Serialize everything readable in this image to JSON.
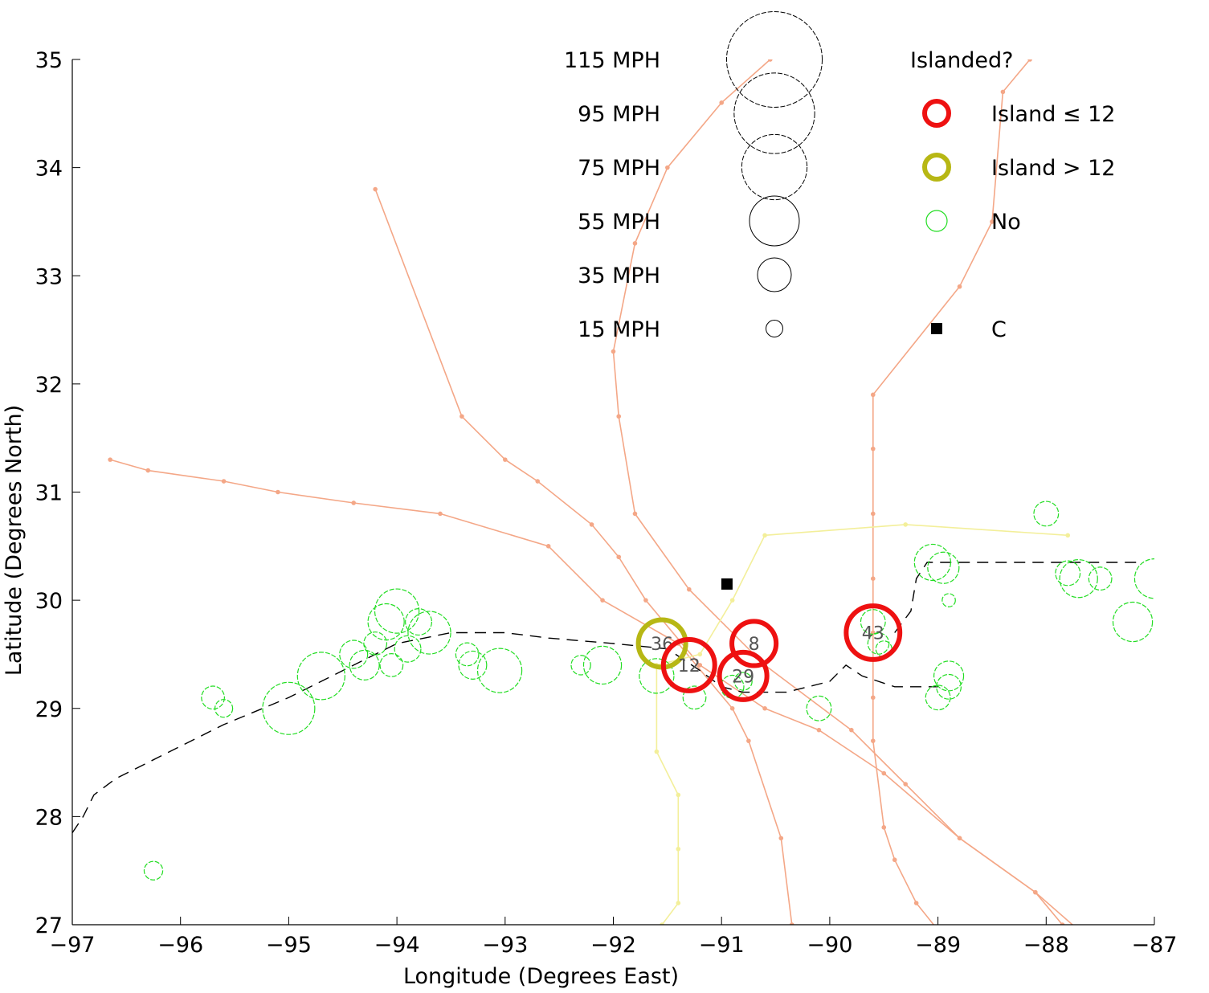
{
  "chart_data": {
    "type": "scatter",
    "xlabel": "Longitude (Degrees East)",
    "ylabel": "Latitude (Degrees North)",
    "xlim": [
      -97,
      -87
    ],
    "ylim": [
      27,
      35
    ],
    "xticks": [
      -97,
      -96,
      -95,
      -94,
      -93,
      -92,
      -91,
      -90,
      -89,
      -88,
      -87
    ],
    "yticks": [
      27,
      28,
      29,
      30,
      31,
      32,
      33,
      34,
      35
    ],
    "grid": false,
    "colors": {
      "track": "#f4a787",
      "track_yellow": "#f3ef9a",
      "coast": "#000000",
      "coast_faint": "#bbbbbb",
      "island_le12": "#ee1111",
      "island_gt12": "#b7b714",
      "no": "#22dd22",
      "legend_circle": "#000000",
      "label": "#555555"
    },
    "size_legend": [
      {
        "label": "115 MPH",
        "mph": 115
      },
      {
        "label": "95 MPH",
        "mph": 95
      },
      {
        "label": "75 MPH",
        "mph": 75
      },
      {
        "label": "55 MPH",
        "mph": 55
      },
      {
        "label": "35 MPH",
        "mph": 35
      },
      {
        "label": "15 MPH",
        "mph": 15
      }
    ],
    "category_legend": {
      "title": "Islanded?",
      "items": [
        {
          "label": "Island ≤ 12",
          "key": "island_le12"
        },
        {
          "label": "Island > 12",
          "key": "island_gt12"
        },
        {
          "label": "No",
          "key": "no"
        },
        {
          "label": "C",
          "key": "c"
        }
      ]
    },
    "c_marker": {
      "lon": -90.95,
      "lat": 30.15
    },
    "islanded_le12": [
      {
        "lon": -91.3,
        "lat": 29.4,
        "mph": 57,
        "label": "12"
      },
      {
        "lon": -90.7,
        "lat": 29.6,
        "mph": 48,
        "label": "8"
      },
      {
        "lon": -90.8,
        "lat": 29.3,
        "mph": 52,
        "label": "29"
      },
      {
        "lon": -89.6,
        "lat": 29.7,
        "mph": 60,
        "label": "43"
      }
    ],
    "islanded_gt12": [
      {
        "lon": -91.55,
        "lat": 29.6,
        "mph": 52,
        "label": "36"
      }
    ],
    "not_islanded": [
      {
        "lon": -96.25,
        "lat": 27.5,
        "mph": 17
      },
      {
        "lon": -95.7,
        "lat": 29.1,
        "mph": 22
      },
      {
        "lon": -95.6,
        "lat": 29.0,
        "mph": 16
      },
      {
        "lon": -95.0,
        "lat": 29.0,
        "mph": 58
      },
      {
        "lon": -94.7,
        "lat": 29.3,
        "mph": 52
      },
      {
        "lon": -94.4,
        "lat": 29.5,
        "mph": 28
      },
      {
        "lon": -94.3,
        "lat": 29.4,
        "mph": 30
      },
      {
        "lon": -94.2,
        "lat": 29.6,
        "mph": 22
      },
      {
        "lon": -94.1,
        "lat": 29.8,
        "mph": 38
      },
      {
        "lon": -94.0,
        "lat": 29.9,
        "mph": 48
      },
      {
        "lon": -94.05,
        "lat": 29.4,
        "mph": 22
      },
      {
        "lon": -93.9,
        "lat": 29.55,
        "mph": 26
      },
      {
        "lon": -93.8,
        "lat": 29.8,
        "mph": 26
      },
      {
        "lon": -93.7,
        "lat": 29.7,
        "mph": 46
      },
      {
        "lon": -93.35,
        "lat": 29.5,
        "mph": 22
      },
      {
        "lon": -93.3,
        "lat": 29.4,
        "mph": 28
      },
      {
        "lon": -93.05,
        "lat": 29.35,
        "mph": 48
      },
      {
        "lon": -92.3,
        "lat": 29.4,
        "mph": 18
      },
      {
        "lon": -92.1,
        "lat": 29.4,
        "mph": 40
      },
      {
        "lon": -91.6,
        "lat": 29.3,
        "mph": 36
      },
      {
        "lon": -91.25,
        "lat": 29.1,
        "mph": 22
      },
      {
        "lon": -90.9,
        "lat": 29.2,
        "mph": 22
      },
      {
        "lon": -90.8,
        "lat": 29.25,
        "mph": 16
      },
      {
        "lon": -90.1,
        "lat": 29.0,
        "mph": 24
      },
      {
        "lon": -89.6,
        "lat": 29.8,
        "mph": 24
      },
      {
        "lon": -89.55,
        "lat": 29.6,
        "mph": 20
      },
      {
        "lon": -89.5,
        "lat": 29.55,
        "mph": 14
      },
      {
        "lon": -89.0,
        "lat": 29.1,
        "mph": 24
      },
      {
        "lon": -88.9,
        "lat": 29.3,
        "mph": 30
      },
      {
        "lon": -88.9,
        "lat": 29.2,
        "mph": 24
      },
      {
        "lon": -88.9,
        "lat": 30.0,
        "mph": 11
      },
      {
        "lon": -88.95,
        "lat": 30.3,
        "mph": 32
      },
      {
        "lon": -89.05,
        "lat": 30.35,
        "mph": 38
      },
      {
        "lon": -88.0,
        "lat": 30.8,
        "mph": 24
      },
      {
        "lon": -87.8,
        "lat": 30.25,
        "mph": 24
      },
      {
        "lon": -87.7,
        "lat": 30.2,
        "mph": 40
      },
      {
        "lon": -87.5,
        "lat": 30.2,
        "mph": 22
      },
      {
        "lon": -87.2,
        "lat": 29.8,
        "mph": 42
      },
      {
        "lon": -87.0,
        "lat": 30.2,
        "mph": 42
      }
    ],
    "coast": {
      "segments": [
        [
          [
            -97.0,
            27.85
          ],
          [
            -96.9,
            28.0
          ],
          [
            -96.8,
            28.2
          ],
          [
            -96.6,
            28.35
          ],
          [
            -96.2,
            28.55
          ],
          [
            -95.6,
            28.85
          ],
          [
            -95.0,
            29.1
          ],
          [
            -94.5,
            29.35
          ],
          [
            -94.0,
            29.6
          ],
          [
            -93.5,
            29.7
          ],
          [
            -93.0,
            29.7
          ],
          [
            -92.6,
            29.65
          ],
          [
            -92.0,
            29.6
          ],
          [
            -91.5,
            29.55
          ],
          [
            -91.2,
            29.35
          ],
          [
            -91.0,
            29.2
          ],
          [
            -90.8,
            29.15
          ],
          [
            -90.4,
            29.15
          ],
          [
            -90.0,
            29.25
          ],
          [
            -89.85,
            29.4
          ],
          [
            -89.7,
            29.3
          ],
          [
            -89.4,
            29.2
          ],
          [
            -89.0,
            29.2
          ]
        ],
        [
          [
            -89.4,
            29.7
          ],
          [
            -89.25,
            29.9
          ],
          [
            -89.2,
            30.2
          ],
          [
            -89.1,
            30.35
          ],
          [
            -88.5,
            30.35
          ],
          [
            -87.9,
            30.35
          ],
          [
            -87.1,
            30.35
          ]
        ]
      ]
    },
    "tracks": [
      {
        "color": "track",
        "points": [
          [
            -96.65,
            31.3
          ],
          [
            -96.3,
            31.2
          ],
          [
            -95.6,
            31.1
          ],
          [
            -95.1,
            31.0
          ],
          [
            -94.4,
            30.9
          ],
          [
            -93.6,
            30.8
          ],
          [
            -92.6,
            30.5
          ],
          [
            -92.1,
            30.0
          ],
          [
            -91.4,
            29.6
          ],
          [
            -90.9,
            29.0
          ],
          [
            -90.75,
            28.7
          ],
          [
            -90.45,
            27.8
          ],
          [
            -90.35,
            27.0
          ]
        ]
      },
      {
        "color": "track",
        "points": [
          [
            -94.2,
            33.8
          ],
          [
            -93.4,
            31.7
          ],
          [
            -93.0,
            31.3
          ],
          [
            -92.7,
            31.1
          ],
          [
            -92.2,
            30.7
          ],
          [
            -91.95,
            30.4
          ],
          [
            -91.7,
            30.0
          ],
          [
            -91.2,
            29.4
          ],
          [
            -90.6,
            29.0
          ],
          [
            -90.1,
            28.8
          ],
          [
            -89.5,
            28.4
          ],
          [
            -88.8,
            27.8
          ],
          [
            -88.1,
            27.3
          ],
          [
            -87.7,
            26.95
          ]
        ]
      },
      {
        "color": "track",
        "points": [
          [
            -90.55,
            35.0
          ],
          [
            -91.0,
            34.6
          ],
          [
            -91.5,
            34.0
          ],
          [
            -91.8,
            33.3
          ],
          [
            -92.0,
            32.3
          ],
          [
            -91.95,
            31.7
          ],
          [
            -91.8,
            30.8
          ],
          [
            -91.3,
            30.1
          ],
          [
            -90.6,
            29.4
          ],
          [
            -89.8,
            28.8
          ],
          [
            -89.3,
            28.3
          ],
          [
            -88.8,
            27.8
          ],
          [
            -88.1,
            27.3
          ],
          [
            -87.85,
            27.0
          ]
        ]
      },
      {
        "color": "track",
        "points": [
          [
            -88.15,
            35.0
          ],
          [
            -88.4,
            34.7
          ],
          [
            -88.5,
            33.5
          ],
          [
            -88.8,
            32.9
          ],
          [
            -89.6,
            31.9
          ],
          [
            -89.6,
            31.4
          ],
          [
            -89.6,
            30.8
          ],
          [
            -89.6,
            30.2
          ],
          [
            -89.6,
            29.7
          ],
          [
            -89.6,
            29.1
          ],
          [
            -89.6,
            28.7
          ],
          [
            -89.5,
            27.9
          ],
          [
            -89.4,
            27.6
          ],
          [
            -89.2,
            27.2
          ],
          [
            -89.0,
            26.95
          ]
        ]
      },
      {
        "color": "track_yellow",
        "points": [
          [
            -91.55,
            27.0
          ],
          [
            -91.4,
            27.2
          ],
          [
            -91.4,
            27.7
          ],
          [
            -91.4,
            28.2
          ],
          [
            -91.6,
            28.6
          ],
          [
            -91.6,
            29.4
          ],
          [
            -91.2,
            29.5
          ],
          [
            -90.9,
            30.0
          ],
          [
            -90.6,
            30.6
          ],
          [
            -89.3,
            30.7
          ],
          [
            -87.8,
            30.6
          ]
        ]
      }
    ]
  }
}
